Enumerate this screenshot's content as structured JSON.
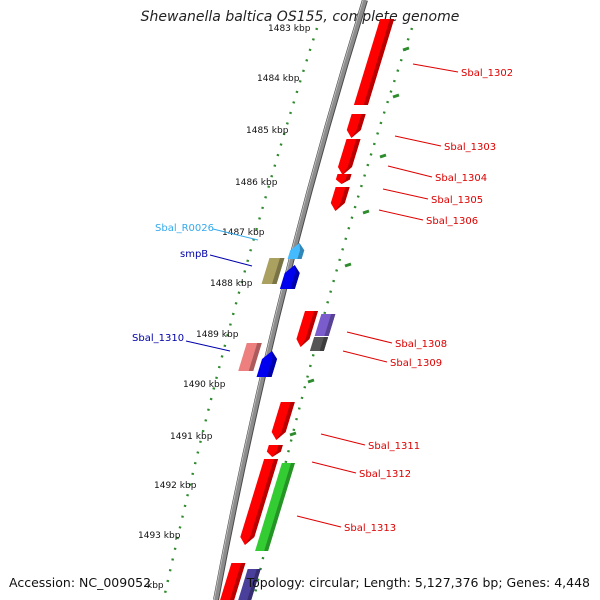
{
  "title": "Shewanella baltica OS155, complete genome",
  "footer": {
    "accession": "Accession: NC_009052",
    "topology": "Topology: circular; Length: 5,127,376 bp; Genes: 4,448"
  },
  "colors": {
    "backbone": "#8c8c8c",
    "tick_dots": "#2e8b2e",
    "forward_gene": "#ff0000",
    "label_red": "#dd0000",
    "label_blue": "#0000aa",
    "label_cyan": "#33aaee"
  },
  "ruler": {
    "unit": "kbp",
    "ticks": [
      "1483 kbp",
      "1484 kbp",
      "1485 kbp",
      "1486 kbp",
      "1487 kbp",
      "1488 kbp",
      "1489 kbp",
      "1490 kbp",
      "1491 kbp",
      "1492 kbp",
      "1493 kbp",
      "kbp"
    ]
  },
  "features": [
    {
      "label": "Sbal_1302",
      "strand": "+",
      "type": "gene",
      "color": "#ff0000"
    },
    {
      "label": "Sbal_1303",
      "strand": "+",
      "type": "gene",
      "color": "#ff0000"
    },
    {
      "label": "Sbal_1304",
      "strand": "+",
      "type": "gene",
      "color": "#ff0000"
    },
    {
      "label": "Sbal_1305",
      "strand": "+",
      "type": "gene",
      "color": "#ff0000"
    },
    {
      "label": "Sbal_1306",
      "strand": "+",
      "type": "gene",
      "color": "#ff0000"
    },
    {
      "label": "Sbal_R0026",
      "strand": "-",
      "type": "rRNA",
      "color": "#44bbff"
    },
    {
      "label": "smpB",
      "strand": "-",
      "type": "gene",
      "color": "#0000ee"
    },
    {
      "label": "",
      "strand": "-",
      "type": "gene",
      "color": "#aaa060"
    },
    {
      "label": "Sbal_1308",
      "strand": "+",
      "type": "gene",
      "color": "#ff0000"
    },
    {
      "label": "",
      "strand": "+",
      "type": "gene",
      "color": "#7a5ccc"
    },
    {
      "label": "Sbal_1309",
      "strand": "+",
      "type": "gene",
      "color": "#555555"
    },
    {
      "label": "Sbal_1310",
      "strand": "-",
      "type": "gene",
      "color": "#0000ee"
    },
    {
      "label": "",
      "strand": "-",
      "type": "gene",
      "color": "#ee7f7f"
    },
    {
      "label": "Sbal_1311",
      "strand": "+",
      "type": "gene",
      "color": "#ff0000"
    },
    {
      "label": "Sbal_1312",
      "strand": "+",
      "type": "gene",
      "color": "#ff0000"
    },
    {
      "label": "Sbal_1313",
      "strand": "+",
      "type": "gene",
      "color": "#ff0000"
    },
    {
      "label": "",
      "strand": "+",
      "type": "gene",
      "color": "#33cc33"
    },
    {
      "label": "",
      "strand": "+",
      "type": "gene",
      "color": "#ff0000"
    },
    {
      "label": "",
      "strand": "+",
      "type": "gene",
      "color": "#4a3f9a"
    }
  ]
}
